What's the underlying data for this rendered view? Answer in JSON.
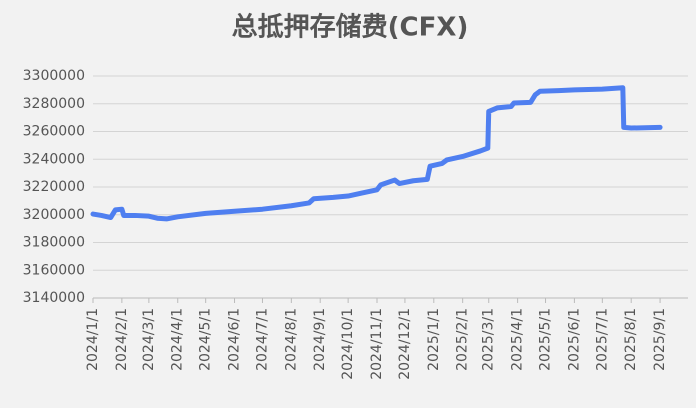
{
  "chart_data": {
    "type": "line",
    "title": "总抵押存储费(CFX)",
    "x": [
      "2024/1/1",
      "2024/1/10",
      "2024/1/20",
      "2024/1/25",
      "2024/2/1",
      "2024/2/3",
      "2024/2/15",
      "2024/3/1",
      "2024/3/10",
      "2024/3/20",
      "2024/4/1",
      "2024/5/1",
      "2024/6/1",
      "2024/7/1",
      "2024/8/1",
      "2024/8/20",
      "2024/8/25",
      "2024/9/15",
      "2024/10/1",
      "2024/10/15",
      "2024/11/1",
      "2024/11/5",
      "2024/11/20",
      "2024/11/25",
      "2024/12/10",
      "2024/12/25",
      "2024/12/28",
      "2025/1/10",
      "2025/1/15",
      "2025/2/1",
      "2025/2/20",
      "2025/2/28",
      "2025/3/1",
      "2025/3/10",
      "2025/3/25",
      "2025/3/28",
      "2025/4/15",
      "2025/4/20",
      "2025/4/25",
      "2025/5/15",
      "2025/6/1",
      "2025/7/1",
      "2025/7/23",
      "2025/7/24",
      "2025/8/1",
      "2025/9/1"
    ],
    "series": [
      {
        "name": "总抵押存储费(CFX)",
        "color": "#4f7ff0",
        "values": [
          3200500,
          3199500,
          3198000,
          3203500,
          3204000,
          3199500,
          3199500,
          3199000,
          3197500,
          3197000,
          3198500,
          3201000,
          3202500,
          3204000,
          3206500,
          3208500,
          3211500,
          3212500,
          3213500,
          3215500,
          3218000,
          3221500,
          3225000,
          3222500,
          3224500,
          3225500,
          3235000,
          3237000,
          3239500,
          3242000,
          3246000,
          3248000,
          3274500,
          3277000,
          3278000,
          3280500,
          3281000,
          3286500,
          3289000,
          3289500,
          3290000,
          3290500,
          3291500,
          3263000,
          3262500,
          3263000
        ]
      }
    ],
    "xlim": [
      "2024/1/1",
      "2025/10/1"
    ],
    "xticks": [
      "2024/1/1",
      "2024/2/1",
      "2024/3/1",
      "2024/4/1",
      "2024/5/1",
      "2024/6/1",
      "2024/7/1",
      "2024/8/1",
      "2024/9/1",
      "2024/10/1",
      "2024/11/1",
      "2024/12/1",
      "2025/1/1",
      "2025/2/1",
      "2025/3/1",
      "2025/4/1",
      "2025/5/1",
      "2025/6/1",
      "2025/7/1",
      "2025/8/1",
      "2025/9/1"
    ],
    "ylim": [
      3140000,
      3300000
    ],
    "yticks": [
      3140000,
      3160000,
      3180000,
      3200000,
      3220000,
      3240000,
      3260000,
      3280000,
      3300000
    ],
    "grid": true
  }
}
